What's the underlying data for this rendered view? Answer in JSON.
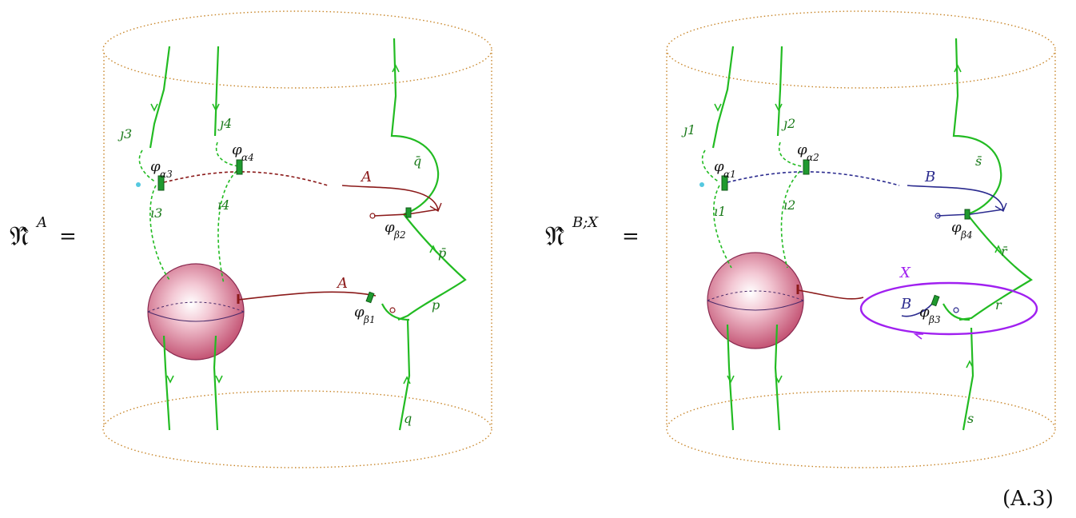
{
  "equation_number": "(A.3)",
  "panels": [
    {
      "lhs_symbol": "𝔑̂",
      "lhs_superscript": "A",
      "equals": "=",
      "legs_top": [
        "ȷ3",
        "ȷ4"
      ],
      "legs_bottom": [
        "ı3",
        "ı4"
      ],
      "phi_top_left": "φ",
      "phi_top_left_sub": "α3",
      "phi_top_right": "φ",
      "phi_top_right_sub": "α4",
      "phi_right_upper": "φ",
      "phi_right_upper_sub": "β2",
      "phi_right_lower": "φ",
      "phi_right_lower_sub": "β1",
      "wilson_upper": "A",
      "wilson_lower": "A",
      "line_qbar": "q̄",
      "line_pbar": "p̄",
      "line_p": "p",
      "line_q": "q"
    },
    {
      "lhs_symbol": "𝔑̂",
      "lhs_superscript": "B;X",
      "equals": "=",
      "legs_top": [
        "ȷ1",
        "ȷ2"
      ],
      "legs_bottom": [
        "ı1",
        "ı2"
      ],
      "phi_top_left": "φ",
      "phi_top_left_sub": "α1",
      "phi_top_right": "φ",
      "phi_top_right_sub": "α2",
      "phi_right_upper": "φ",
      "phi_right_upper_sub": "β4",
      "phi_right_lower": "φ",
      "phi_right_lower_sub": "β3",
      "wilson_upper": "B",
      "wilson_lower": "B",
      "loop_label": "X",
      "line_sbar": "s̄",
      "line_rbar": "r̄",
      "line_r": "r",
      "line_s": "s"
    }
  ],
  "colors": {
    "green": "#22bb22",
    "maroon": "#8b1a1a",
    "navy": "#2a2a8e",
    "violet": "#a020f0",
    "cylinder": "#c8862a",
    "sphere": "#d0607a",
    "cyan": "#55c8e0"
  }
}
